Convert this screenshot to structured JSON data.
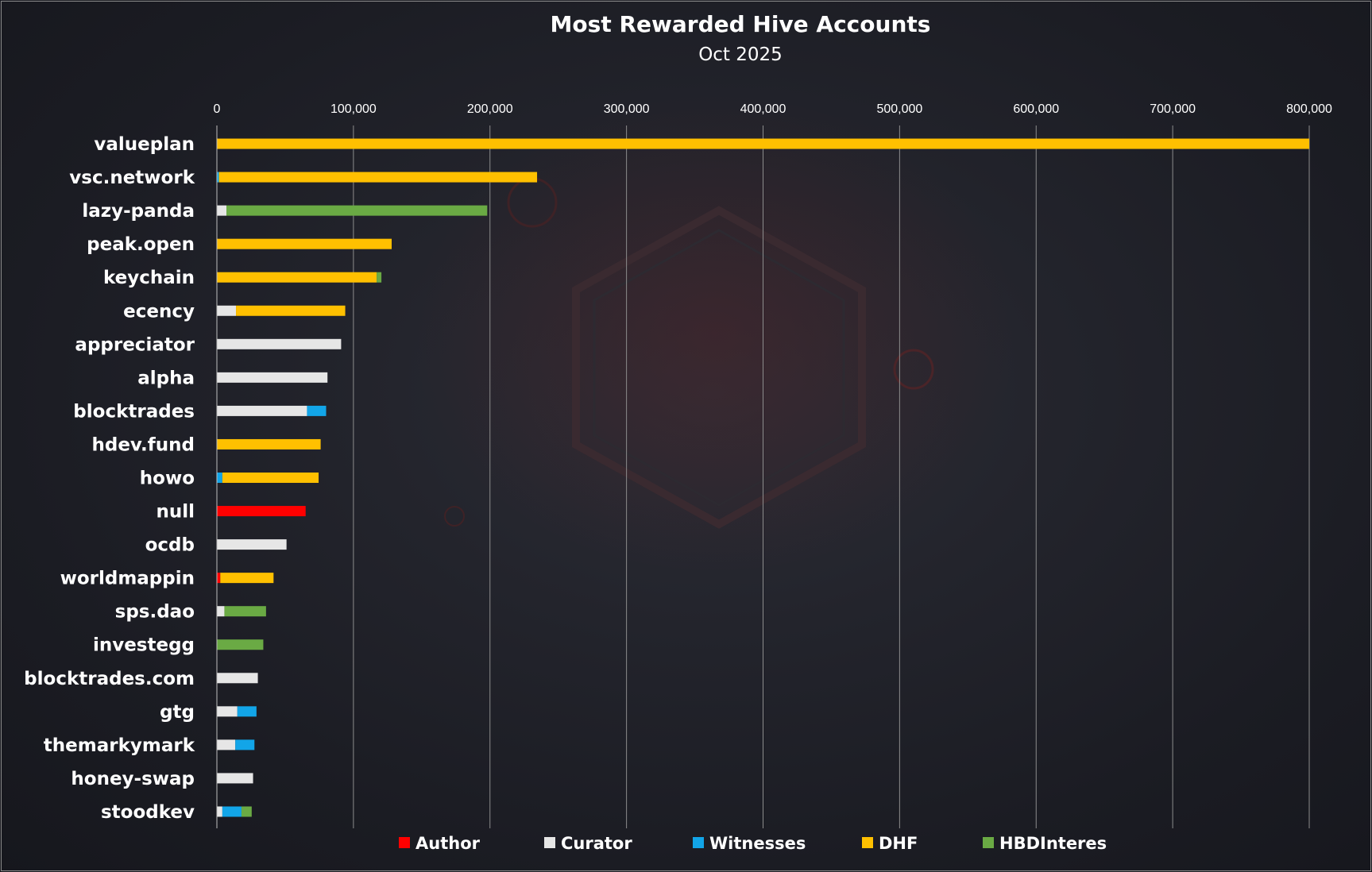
{
  "chart_data": {
    "type": "bar",
    "orientation": "horizontal",
    "stacked": true,
    "title": "Most Rewarded Hive Accounts",
    "subtitle": "Oct 2025",
    "xlabel": "",
    "ylabel": "",
    "xlim": [
      0,
      800000
    ],
    "xticks": [
      0,
      100000,
      200000,
      300000,
      400000,
      500000,
      600000,
      700000,
      800000
    ],
    "xtick_labels": [
      "0",
      "100,000",
      "200,000",
      "300,000",
      "400,000",
      "500,000",
      "600,000",
      "700,000",
      "800,000"
    ],
    "grid": true,
    "legend_position": "bottom",
    "categories": [
      "valueplan",
      "vsc.network",
      "lazy-panda",
      "peak.open",
      "keychain",
      "ecency",
      "appreciator",
      "alpha",
      "blocktrades",
      "hdev.fund",
      "howo",
      "null",
      "ocdb",
      "worldmappin",
      "sps.dao",
      "investegg",
      "blocktrades.com",
      "gtg",
      "themarkymark",
      "honey-swap",
      "stoodkev"
    ],
    "series": [
      {
        "name": "Author",
        "color": "#ff0000",
        "values": [
          0,
          0,
          0,
          0,
          0,
          0,
          0,
          0,
          0,
          0,
          0,
          65000,
          0,
          2500,
          0,
          0,
          0,
          0,
          0,
          0,
          0
        ]
      },
      {
        "name": "Curator",
        "color": "#e6e6e6",
        "values": [
          0,
          0,
          7000,
          0,
          0,
          14000,
          91000,
          81000,
          66000,
          0,
          0,
          0,
          51000,
          0,
          5500,
          0,
          30000,
          15000,
          13500,
          26500,
          4000
        ]
      },
      {
        "name": "Witnesses",
        "color": "#12a5e8",
        "values": [
          0,
          1500,
          0,
          0,
          0,
          0,
          0,
          0,
          14000,
          0,
          4000,
          0,
          0,
          0,
          0,
          0,
          0,
          14000,
          14000,
          0,
          14000
        ]
      },
      {
        "name": "DHF",
        "color": "#ffc000",
        "values": [
          800000,
          233000,
          0,
          128000,
          117000,
          80000,
          0,
          0,
          0,
          76000,
          70500,
          0,
          0,
          39000,
          0,
          0,
          0,
          0,
          0,
          0,
          0
        ]
      },
      {
        "name": "HBDInteres",
        "color": "#6aaa44",
        "values": [
          0,
          0,
          191000,
          0,
          3500,
          0,
          0,
          0,
          0,
          0,
          0,
          0,
          0,
          0,
          30500,
          34000,
          0,
          0,
          0,
          0,
          7500
        ]
      }
    ]
  }
}
